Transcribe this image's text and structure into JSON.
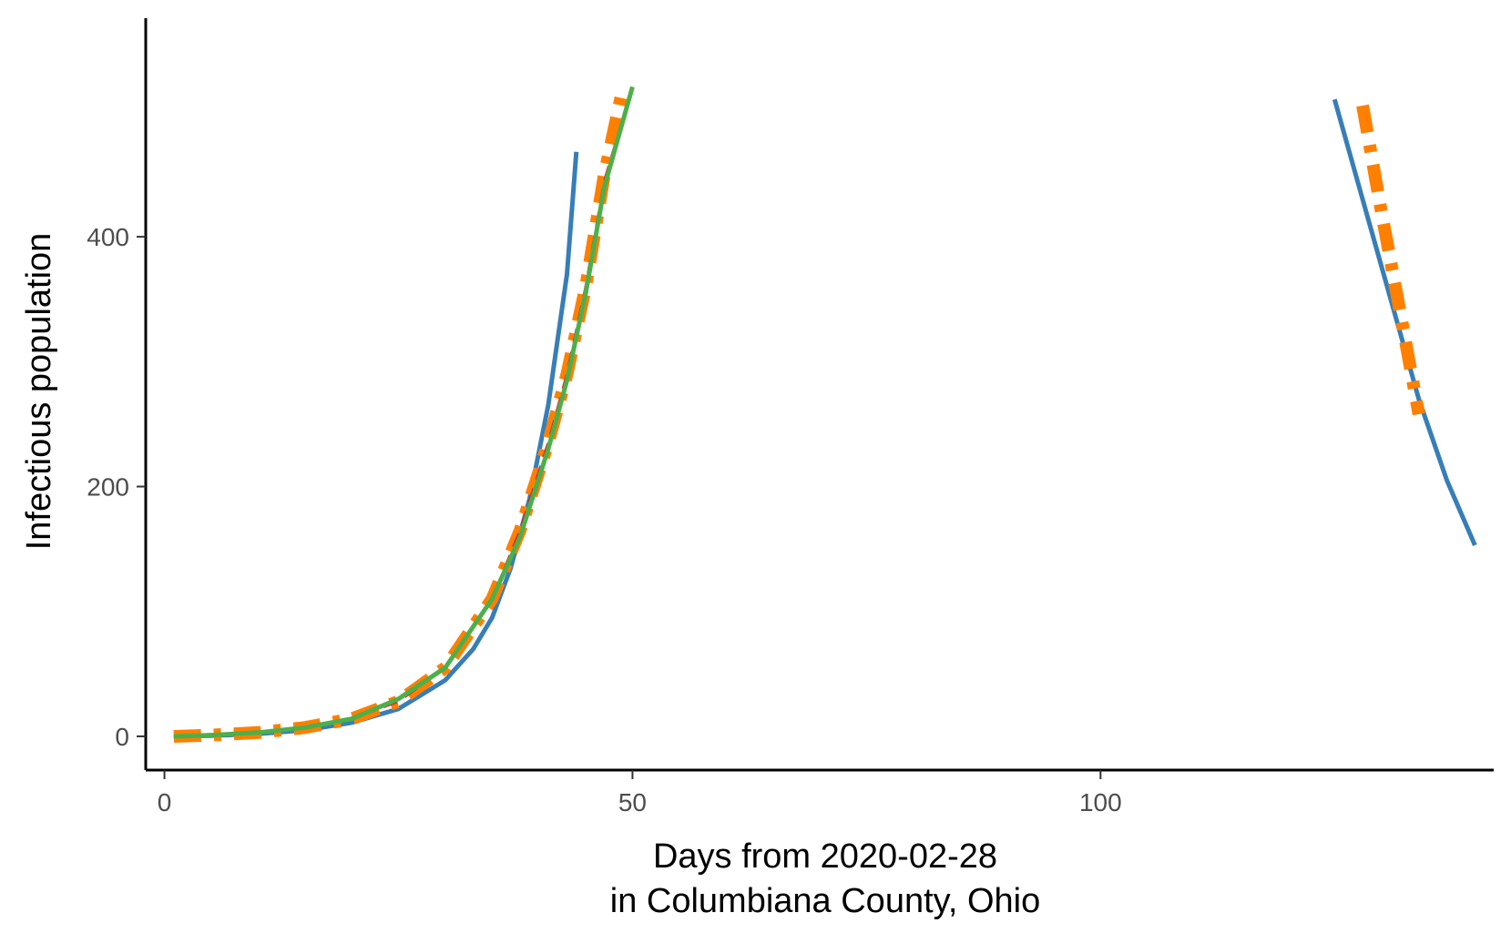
{
  "chart_data": {
    "type": "line",
    "title": "",
    "xlabel_lines": [
      "Days from 2020-02-28",
      "in Columbiana County, Ohio"
    ],
    "ylabel": "Infectious population",
    "xlim": [
      -2,
      142
    ],
    "ylim": [
      -27,
      575
    ],
    "x_ticks": [
      0,
      50,
      100
    ],
    "y_ticks": [
      0,
      200,
      400
    ],
    "grid": false,
    "legend": "none",
    "series": [
      {
        "color": "#377eb8",
        "dash": "solid",
        "width": 5,
        "segments": [
          [
            [
              1,
              0
            ],
            [
              5,
              0.5
            ],
            [
              10,
              2
            ],
            [
              15,
              5
            ],
            [
              20,
              11
            ],
            [
              25,
              22
            ],
            [
              30,
              45
            ],
            [
              33,
              70
            ],
            [
              35,
              95
            ],
            [
              37,
              135
            ],
            [
              39,
              190
            ],
            [
              41,
              265
            ],
            [
              43,
              370
            ],
            [
              44,
              468
            ]
          ],
          [
            [
              125,
              510
            ],
            [
              128,
              430
            ],
            [
              131,
              350
            ],
            [
              134,
              270
            ],
            [
              137,
              205
            ],
            [
              140,
              153
            ]
          ]
        ]
      },
      {
        "color": "#ff7f00",
        "dash": "dashdot",
        "width": 14,
        "segments": [
          [
            [
              1,
              0
            ],
            [
              5,
              1
            ],
            [
              10,
              3
            ],
            [
              15,
              7
            ],
            [
              20,
              14
            ],
            [
              25,
              28
            ],
            [
              30,
              55
            ],
            [
              35,
              110
            ],
            [
              38,
              165
            ],
            [
              41,
              235
            ],
            [
              43,
              290
            ],
            [
              45,
              360
            ],
            [
              47,
              450
            ],
            [
              49,
              520
            ]
          ],
          [
            [
              128,
              505
            ],
            [
              130,
              420
            ],
            [
              132,
              340
            ],
            [
              134,
              258
            ]
          ]
        ]
      },
      {
        "color": "#e41a1c",
        "dash": "dashed",
        "width": 3,
        "segments": [
          [
            [
              1,
              0
            ],
            [
              5,
              1
            ],
            [
              10,
              3
            ],
            [
              15,
              7
            ],
            [
              20,
              14
            ],
            [
              25,
              28
            ],
            [
              30,
              55
            ],
            [
              35,
              110
            ],
            [
              38,
              165
            ],
            [
              41,
              235
            ],
            [
              43,
              290
            ],
            [
              45,
              360
            ],
            [
              47,
              445
            ],
            [
              50,
              520
            ]
          ]
        ]
      },
      {
        "color": "#4daf4a",
        "dash": "solid",
        "width": 5,
        "segments": [
          [
            [
              1,
              0
            ],
            [
              5,
              1
            ],
            [
              10,
              3
            ],
            [
              15,
              7
            ],
            [
              20,
              14
            ],
            [
              25,
              30
            ],
            [
              30,
              55
            ],
            [
              35,
              110
            ],
            [
              38,
              160
            ],
            [
              41,
              230
            ],
            [
              43,
              285
            ],
            [
              45,
              355
            ],
            [
              47,
              440
            ],
            [
              50,
              520
            ]
          ]
        ]
      }
    ]
  }
}
